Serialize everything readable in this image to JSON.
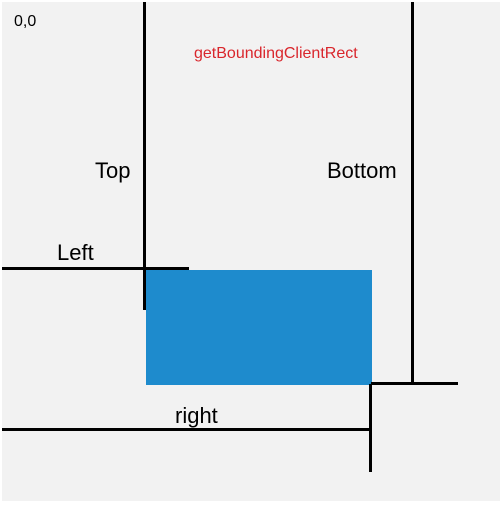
{
  "diagram": {
    "origin_label": "0,0",
    "title": "getBoundingClientRect",
    "labels": {
      "top": "Top",
      "bottom": "Bottom",
      "left": "Left",
      "right": "right"
    },
    "colors": {
      "background": "#f2f2f2",
      "title": "#d9262c",
      "rectangle": "#1e8bcd",
      "lines": "#000000"
    }
  }
}
